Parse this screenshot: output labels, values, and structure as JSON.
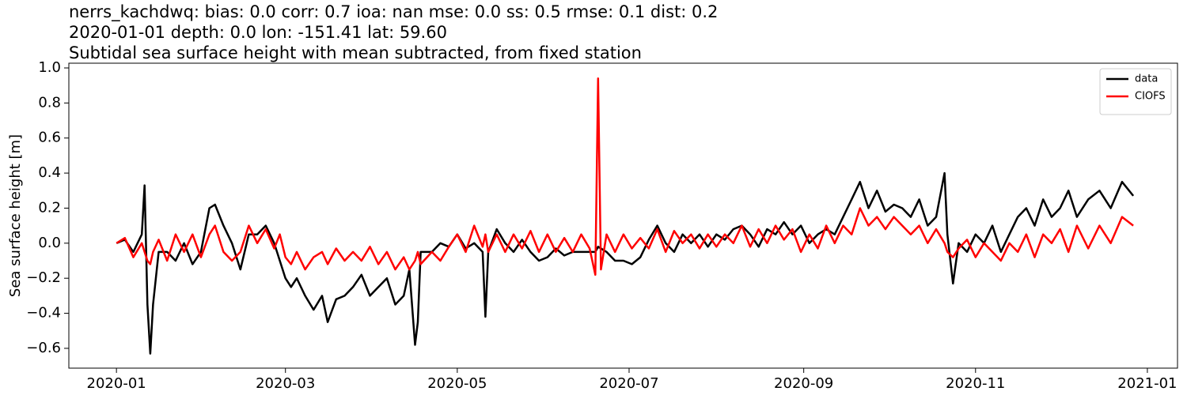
{
  "chart_data": {
    "type": "line",
    "title": [
      "nerrs_kachdwq: bias: 0.0  corr: 0.7  ioa: nan  mse: 0.0  ss: 0.5  rmse: 0.1  dist: 0.2",
      "2020-01-01 depth: 0.0 lon: -151.41 lat: 59.60",
      "Subtidal sea surface height with mean subtracted, from fixed station"
    ],
    "ylabel": "Sea surface height [m]",
    "x": [
      0,
      3,
      6,
      9,
      10,
      11,
      12,
      13,
      15,
      18,
      21,
      24,
      27,
      30,
      33,
      35,
      38,
      41,
      44,
      47,
      50,
      53,
      56,
      58,
      60,
      62,
      64,
      67,
      70,
      73,
      75,
      78,
      81,
      84,
      87,
      90,
      93,
      96,
      99,
      102,
      104,
      106,
      107,
      108,
      112,
      115,
      118,
      121,
      124,
      127,
      130,
      131,
      132,
      135,
      138,
      141,
      144,
      147,
      150,
      153,
      156,
      159,
      162,
      165,
      168,
      170,
      171,
      172,
      174,
      177,
      180,
      183,
      186,
      189,
      192,
      195,
      198,
      201,
      204,
      207,
      210,
      213,
      216,
      219,
      222,
      225,
      228,
      231,
      234,
      237,
      240,
      243,
      246,
      249,
      252,
      255,
      258,
      261,
      264,
      267,
      270,
      273,
      276,
      279,
      282,
      285,
      288,
      291,
      294,
      295,
      297,
      299,
      302,
      305,
      308,
      311,
      314,
      317,
      320,
      323,
      326,
      329,
      332,
      335,
      338,
      341,
      345,
      349,
      353,
      357,
      361
    ],
    "series": [
      {
        "name": "data",
        "color": "#000000",
        "values": [
          0,
          0.02,
          -0.05,
          0.05,
          0.33,
          -0.35,
          -0.63,
          -0.35,
          -0.05,
          -0.05,
          -0.1,
          0.0,
          -0.12,
          -0.05,
          0.2,
          0.22,
          0.1,
          0.0,
          -0.15,
          0.05,
          0.05,
          0.1,
          0.0,
          -0.1,
          -0.2,
          -0.25,
          -0.2,
          -0.3,
          -0.38,
          -0.3,
          -0.45,
          -0.32,
          -0.3,
          -0.25,
          -0.18,
          -0.3,
          -0.25,
          -0.2,
          -0.35,
          -0.3,
          -0.15,
          -0.58,
          -0.45,
          -0.05,
          -0.05,
          0.0,
          -0.02,
          0.05,
          -0.03,
          0.0,
          -0.05,
          -0.42,
          -0.05,
          0.08,
          0.0,
          -0.05,
          0.02,
          -0.05,
          -0.1,
          -0.08,
          -0.03,
          -0.07,
          -0.05,
          -0.05,
          -0.05,
          -0.05,
          -0.02,
          -0.03,
          -0.05,
          -0.1,
          -0.1,
          -0.12,
          -0.08,
          0.02,
          0.1,
          0.0,
          -0.05,
          0.05,
          0.0,
          0.05,
          -0.02,
          0.05,
          0.02,
          0.08,
          0.1,
          0.05,
          -0.02,
          0.08,
          0.05,
          0.12,
          0.05,
          0.1,
          0.0,
          0.05,
          0.08,
          0.05,
          0.15,
          0.25,
          0.35,
          0.2,
          0.3,
          0.18,
          0.22,
          0.2,
          0.15,
          0.25,
          0.1,
          0.15,
          0.4,
          0.05,
          -0.23,
          0.0,
          -0.05,
          0.05,
          0.0,
          0.1,
          -0.05,
          0.05,
          0.15,
          0.2,
          0.1,
          0.25,
          0.15,
          0.2,
          0.3,
          0.15,
          0.25,
          0.3,
          0.2,
          0.35,
          0.27
        ]
      },
      {
        "name": "CIOFS",
        "color": "#ff0000",
        "values": [
          0.0,
          0.03,
          -0.08,
          0.0,
          -0.05,
          -0.1,
          -0.12,
          -0.05,
          0.02,
          -0.1,
          0.05,
          -0.05,
          0.05,
          -0.08,
          0.05,
          0.1,
          -0.05,
          -0.1,
          -0.05,
          0.1,
          0.0,
          0.08,
          -0.03,
          0.05,
          -0.08,
          -0.12,
          -0.05,
          -0.15,
          -0.08,
          -0.05,
          -0.12,
          -0.03,
          -0.1,
          -0.05,
          -0.1,
          -0.02,
          -0.12,
          -0.05,
          -0.15,
          -0.08,
          -0.15,
          -0.1,
          -0.05,
          -0.12,
          -0.05,
          -0.1,
          -0.02,
          0.05,
          -0.05,
          0.1,
          -0.02,
          0.05,
          -0.05,
          0.05,
          -0.05,
          0.05,
          -0.03,
          0.07,
          -0.05,
          0.05,
          -0.05,
          0.03,
          -0.05,
          0.05,
          -0.03,
          -0.18,
          0.94,
          -0.15,
          0.05,
          -0.05,
          0.05,
          -0.03,
          0.03,
          -0.03,
          0.08,
          -0.05,
          0.07,
          0.0,
          0.05,
          -0.03,
          0.05,
          -0.02,
          0.05,
          0.0,
          0.1,
          -0.02,
          0.08,
          0.0,
          0.1,
          0.02,
          0.08,
          -0.05,
          0.05,
          -0.03,
          0.1,
          0.0,
          0.1,
          0.05,
          0.2,
          0.1,
          0.15,
          0.08,
          0.15,
          0.1,
          0.05,
          0.1,
          0.0,
          0.08,
          0.0,
          -0.05,
          -0.08,
          -0.03,
          0.02,
          -0.08,
          0.0,
          -0.05,
          -0.1,
          0.0,
          -0.05,
          0.05,
          -0.08,
          0.05,
          0.0,
          0.08,
          -0.05,
          0.1,
          -0.03,
          0.1,
          0.0,
          0.15,
          0.1
        ]
      }
    ],
    "xlim": [
      -16.9,
      376.7
    ],
    "xticks": [
      {
        "value": 0,
        "label": "2020-01"
      },
      {
        "value": 60,
        "label": "2020-03"
      },
      {
        "value": 121,
        "label": "2020-05"
      },
      {
        "value": 182,
        "label": "2020-07"
      },
      {
        "value": 244,
        "label": "2020-09"
      },
      {
        "value": 305,
        "label": "2020-11"
      },
      {
        "value": 366,
        "label": "2021-01"
      }
    ],
    "ylim": [
      -0.713,
      1.027
    ],
    "yticks": [
      {
        "value": -0.6,
        "label": "−0.6"
      },
      {
        "value": -0.4,
        "label": "−0.4"
      },
      {
        "value": -0.2,
        "label": "−0.2"
      },
      {
        "value": 0,
        "label": "0.0"
      },
      0.2,
      0.4,
      0.6,
      0.8,
      {
        "value": 1,
        "label": "1.0"
      }
    ],
    "legend": "upper right",
    "grid": false
  }
}
